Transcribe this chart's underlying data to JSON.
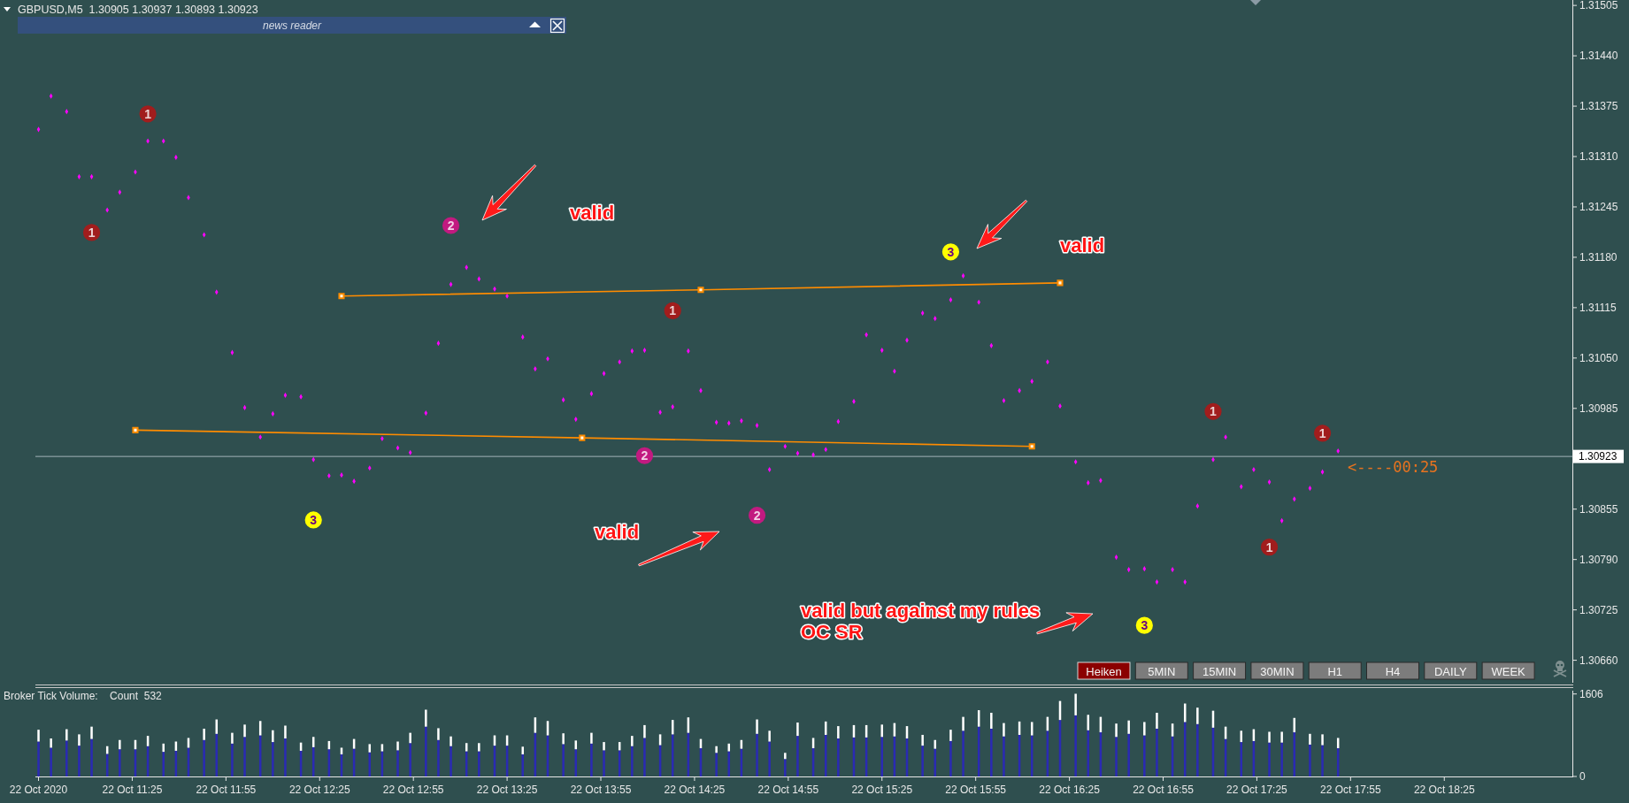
{
  "chart_data": [
    {
      "type": "scatter",
      "title": "GBPUSD,M5  1.30905 1.30937 1.30893 1.30923",
      "xlim": [
        "2020-10-22T10:54",
        "2020-10-22T19:06"
      ],
      "ylim": [
        1.30631,
        1.31512
      ],
      "yticks": [
        1.31505,
        {
          "value": 1.3144,
          "label": "1.31440"
        },
        1.31375,
        {
          "value": 1.3131,
          "label": "1.31310"
        },
        1.31245,
        {
          "value": 1.3118,
          "label": "1.31180"
        },
        1.31115,
        {
          "value": 1.3105,
          "label": "1.31050"
        },
        1.30985,
        1.30855,
        {
          "value": 1.3079,
          "label": "1.30790"
        },
        1.30725,
        {
          "value": 1.3066,
          "label": "1.30660"
        }
      ],
      "tick_labels": "y",
      "x": [
        "2020-10-22T10:55",
        "2020-10-22T10:59",
        "2020-10-22T11:04",
        "2020-10-22T11:08",
        "2020-10-22T11:12",
        "2020-10-22T11:17",
        "2020-10-22T11:21",
        "2020-10-22T11:26",
        "2020-10-22T11:30",
        "2020-10-22T11:35",
        "2020-10-22T11:39",
        "2020-10-22T11:43",
        "2020-10-22T11:48",
        "2020-10-22T11:52",
        "2020-10-22T11:57",
        "2020-10-22T12:01",
        "2020-10-22T12:06",
        "2020-10-22T12:10",
        "2020-10-22T12:14",
        "2020-10-22T12:19",
        "2020-10-22T12:23",
        "2020-10-22T12:28",
        "2020-10-22T12:32",
        "2020-10-22T12:36",
        "2020-10-22T12:41",
        "2020-10-22T12:45",
        "2020-10-22T12:50",
        "2020-10-22T12:54",
        "2020-10-22T12:59",
        "2020-10-22T13:03",
        "2020-10-22T13:07",
        "2020-10-22T13:12",
        "2020-10-22T13:16",
        "2020-10-22T13:21",
        "2020-10-22T13:25",
        "2020-10-22T13:30",
        "2020-10-22T13:34",
        "2020-10-22T13:38",
        "2020-10-22T13:43",
        "2020-10-22T13:47",
        "2020-10-22T13:52",
        "2020-10-22T13:56",
        "2020-10-22T14:01",
        "2020-10-22T14:05",
        "2020-10-22T14:09",
        "2020-10-22T14:14",
        "2020-10-22T14:18",
        "2020-10-22T14:23",
        "2020-10-22T14:27",
        "2020-10-22T14:32",
        "2020-10-22T14:36",
        "2020-10-22T14:40",
        "2020-10-22T14:45",
        "2020-10-22T14:49",
        "2020-10-22T14:54",
        "2020-10-22T14:58",
        "2020-10-22T15:03",
        "2020-10-22T15:07",
        "2020-10-22T15:11",
        "2020-10-22T15:16",
        "2020-10-22T15:20",
        "2020-10-22T15:25",
        "2020-10-22T15:29",
        "2020-10-22T15:33",
        "2020-10-22T15:38",
        "2020-10-22T15:42",
        "2020-10-22T15:47",
        "2020-10-22T15:51",
        "2020-10-22T15:56",
        "2020-10-22T16:00",
        "2020-10-22T16:04",
        "2020-10-22T16:09",
        "2020-10-22T16:13",
        "2020-10-22T16:18",
        "2020-10-22T16:22",
        "2020-10-22T16:27",
        "2020-10-22T16:31",
        "2020-10-22T16:35",
        "2020-10-22T16:40",
        "2020-10-22T16:44",
        "2020-10-22T16:49",
        "2020-10-22T16:53",
        "2020-10-22T16:58",
        "2020-10-22T17:02",
        "2020-10-22T17:06",
        "2020-10-22T17:11",
        "2020-10-22T17:15",
        "2020-10-22T17:20",
        "2020-10-22T17:24",
        "2020-10-22T17:29",
        "2020-10-22T17:33",
        "2020-10-22T17:37",
        "2020-10-22T17:42",
        "2020-10-22T17:46",
        "2020-10-22T17:51"
      ],
      "series": [
        {
          "color": "#ff00ff",
          "marker": "diamond",
          "values": [
            1.31345,
            1.31388,
            1.31368,
            1.31284,
            1.31284,
            1.31241,
            1.31264,
            1.3129,
            1.3133,
            1.3133,
            1.31309,
            1.31257,
            1.31209,
            1.31135,
            1.31057,
            1.30986,
            1.30948,
            1.30978,
            1.31002,
            1.31,
            1.30919,
            1.30898,
            1.30899,
            1.30891,
            1.30908,
            1.30946,
            1.30934,
            1.30928,
            1.30979,
            1.31069,
            1.31145,
            1.31167,
            1.31152,
            1.31139,
            1.3113,
            1.31077,
            1.31036,
            1.31049,
            1.30996,
            1.30971,
            1.31004,
            1.3103,
            1.31045,
            1.31059,
            1.3106,
            1.3098,
            1.30987,
            1.31059,
            1.31008,
            1.30967,
            1.30966,
            1.30969,
            1.30963,
            1.30906,
            1.30936,
            1.30927,
            1.30925,
            1.30932,
            1.30968,
            1.30994,
            1.3108,
            1.3106,
            1.31033,
            1.31073,
            1.31108,
            1.31101,
            1.31125,
            1.31156,
            1.31122,
            1.31066,
            1.30995,
            1.31008,
            1.3102,
            1.31045,
            1.30988,
            1.30916,
            1.30889,
            1.30892,
            1.30793,
            1.30777,
            1.30778,
            1.30761,
            1.30777,
            1.30761,
            1.30859,
            1.30919,
            1.30948,
            1.30884,
            1.30906,
            1.3089,
            1.3084,
            1.30868,
            1.30882,
            1.30903,
            1.3093
          ]
        },
        {
          "type": "line",
          "color": "#ff8c00",
          "marker": "square",
          "x": [
            "2020-10-22T12:32",
            "2020-10-22T14:27",
            "2020-10-22T16:22"
          ],
          "values": [
            1.3113,
            1.31138,
            1.31147
          ]
        },
        {
          "type": "line",
          "color": "#ff8c00",
          "marker": "square",
          "x": [
            "2020-10-22T11:26",
            "2020-10-22T13:49",
            "2020-10-22T16:13"
          ],
          "values": [
            1.30957,
            1.30947,
            1.30936
          ]
        },
        {
          "type": "scatter",
          "color": "#a11d1d",
          "marker": "circle",
          "x": [
            "2020-10-22T11:12",
            "2020-10-22T11:30",
            "2020-10-22T14:18",
            "2020-10-22T17:11",
            "2020-10-22T17:29",
            "2020-10-22T17:46"
          ],
          "values": [
            1.31212,
            1.31365,
            1.31111,
            1.30981,
            1.30806,
            1.30953
          ]
        },
        {
          "type": "scatter",
          "color": "#c21a80",
          "marker": "circle",
          "x": [
            "2020-10-22T13:07",
            "2020-10-22T14:09",
            "2020-10-22T14:45"
          ],
          "values": [
            1.31221,
            1.30924,
            1.30847
          ]
        },
        {
          "type": "scatter",
          "color": "#ffff00",
          "marker": "circle",
          "x": [
            "2020-10-22T12:23",
            "2020-10-22T15:47",
            "2020-10-22T16:49"
          ],
          "values": [
            1.30841,
            1.31187,
            1.30705
          ]
        }
      ],
      "ref_lines": [
        {
          "axis": "y",
          "value": 1.30923,
          "label": "1.30923",
          "color": "#a3b3ba"
        }
      ],
      "annotations": [
        "valid",
        "valid",
        "valid",
        "valid but against my rules\nOC SR",
        "<----00:25",
        "news reader",
        "Heiken",
        "5MIN",
        "15MIN",
        "30MIN",
        "H1",
        "H4",
        "DAILY",
        "WEEK",
        {
          "text": "1",
          "x": "2020-10-22T11:12",
          "y": 1.31212
        },
        {
          "text": "1",
          "x": "2020-10-22T11:30",
          "y": 1.31365
        },
        {
          "text": "1",
          "x": "2020-10-22T14:18",
          "y": 1.31111
        },
        {
          "text": "1",
          "x": "2020-10-22T17:11",
          "y": 1.30981
        },
        {
          "text": "1",
          "x": "2020-10-22T17:29",
          "y": 1.30806
        },
        {
          "text": "1",
          "x": "2020-10-22T17:46",
          "y": 1.30953
        },
        {
          "text": "2",
          "x": "2020-10-22T13:07",
          "y": 1.31221
        },
        {
          "text": "2",
          "x": "2020-10-22T14:09",
          "y": 1.30924
        },
        {
          "text": "2",
          "x": "2020-10-22T14:45",
          "y": 1.30847
        },
        {
          "text": "3",
          "x": "2020-10-22T12:23",
          "y": 1.30841
        },
        {
          "text": "3",
          "x": "2020-10-22T15:47",
          "y": 1.31187
        },
        {
          "text": "3",
          "x": "2020-10-22T16:49",
          "y": 1.30705
        }
      ]
    },
    {
      "type": "bar",
      "stacked": true,
      "title": "Broker Tick Volume:    Count  532",
      "xlim": [
        "2020-10-22T10:54",
        "2020-10-22T19:06"
      ],
      "ylim": [
        0,
        1670
      ],
      "yticks": [
        0,
        1606
      ],
      "xticks": [
        {
          "value": "2020-10-22T10:55",
          "label": "22 Oct 2020"
        },
        {
          "value": "2020-10-22T11:25",
          "label": "22 Oct 11:25"
        },
        {
          "value": "2020-10-22T11:55",
          "label": "22 Oct 11:55"
        },
        {
          "value": "2020-10-22T12:25",
          "label": "22 Oct 12:25"
        },
        {
          "value": "2020-10-22T12:55",
          "label": "22 Oct 12:55"
        },
        {
          "value": "2020-10-22T13:25",
          "label": "22 Oct 13:25"
        },
        {
          "value": "2020-10-22T13:55",
          "label": "22 Oct 13:55"
        },
        {
          "value": "2020-10-22T14:25",
          "label": "22 Oct 14:25"
        },
        {
          "value": "2020-10-22T14:55",
          "label": "22 Oct 14:55"
        },
        {
          "value": "2020-10-22T15:25",
          "label": "22 Oct 15:25"
        },
        {
          "value": "2020-10-22T15:55",
          "label": "22 Oct 15:55"
        },
        {
          "value": "2020-10-22T16:25",
          "label": "22 Oct 16:25"
        },
        {
          "value": "2020-10-22T16:55",
          "label": "22 Oct 16:55"
        },
        {
          "value": "2020-10-22T17:25",
          "label": "22 Oct 17:25"
        },
        {
          "value": "2020-10-22T17:55",
          "label": "22 Oct 17:55"
        },
        {
          "value": "2020-10-22T18:25",
          "label": "22 Oct 18:25"
        }
      ],
      "x": [
        "2020-10-22T10:55",
        "2020-10-22T10:59",
        "2020-10-22T11:04",
        "2020-10-22T11:08",
        "2020-10-22T11:12",
        "2020-10-22T11:17",
        "2020-10-22T11:21",
        "2020-10-22T11:26",
        "2020-10-22T11:30",
        "2020-10-22T11:35",
        "2020-10-22T11:39",
        "2020-10-22T11:43",
        "2020-10-22T11:48",
        "2020-10-22T11:52",
        "2020-10-22T11:57",
        "2020-10-22T12:01",
        "2020-10-22T12:06",
        "2020-10-22T12:10",
        "2020-10-22T12:14",
        "2020-10-22T12:19",
        "2020-10-22T12:23",
        "2020-10-22T12:28",
        "2020-10-22T12:32",
        "2020-10-22T12:36",
        "2020-10-22T12:41",
        "2020-10-22T12:45",
        "2020-10-22T12:50",
        "2020-10-22T12:54",
        "2020-10-22T12:59",
        "2020-10-22T13:03",
        "2020-10-22T13:07",
        "2020-10-22T13:12",
        "2020-10-22T13:16",
        "2020-10-22T13:21",
        "2020-10-22T13:25",
        "2020-10-22T13:30",
        "2020-10-22T13:34",
        "2020-10-22T13:38",
        "2020-10-22T13:43",
        "2020-10-22T13:47",
        "2020-10-22T13:52",
        "2020-10-22T13:56",
        "2020-10-22T14:01",
        "2020-10-22T14:05",
        "2020-10-22T14:09",
        "2020-10-22T14:14",
        "2020-10-22T14:18",
        "2020-10-22T14:23",
        "2020-10-22T14:27",
        "2020-10-22T14:32",
        "2020-10-22T14:36",
        "2020-10-22T14:40",
        "2020-10-22T14:45",
        "2020-10-22T14:49",
        "2020-10-22T14:54",
        "2020-10-22T14:58",
        "2020-10-22T15:03",
        "2020-10-22T15:07",
        "2020-10-22T15:11",
        "2020-10-22T15:16",
        "2020-10-22T15:20",
        "2020-10-22T15:25",
        "2020-10-22T15:29",
        "2020-10-22T15:33",
        "2020-10-22T15:38",
        "2020-10-22T15:42",
        "2020-10-22T15:47",
        "2020-10-22T15:51",
        "2020-10-22T15:56",
        "2020-10-22T16:00",
        "2020-10-22T16:04",
        "2020-10-22T16:09",
        "2020-10-22T16:13",
        "2020-10-22T16:18",
        "2020-10-22T16:22",
        "2020-10-22T16:27",
        "2020-10-22T16:31",
        "2020-10-22T16:35",
        "2020-10-22T16:40",
        "2020-10-22T16:44",
        "2020-10-22T16:49",
        "2020-10-22T16:53",
        "2020-10-22T16:58",
        "2020-10-22T17:02",
        "2020-10-22T17:06",
        "2020-10-22T17:11",
        "2020-10-22T17:15",
        "2020-10-22T17:20",
        "2020-10-22T17:24",
        "2020-10-22T17:29",
        "2020-10-22T17:33",
        "2020-10-22T17:37",
        "2020-10-22T17:42",
        "2020-10-22T17:46",
        "2020-10-22T17:51"
      ],
      "series": [
        {
          "color": "#2a2ab4",
          "values": [
            680,
            560,
            700,
            600,
            730,
            440,
            530,
            530,
            590,
            480,
            500,
            560,
            710,
            830,
            640,
            770,
            800,
            670,
            740,
            500,
            570,
            530,
            430,
            540,
            470,
            490,
            510,
            650,
            970,
            710,
            590,
            490,
            490,
            600,
            600,
            430,
            850,
            800,
            630,
            530,
            640,
            510,
            510,
            590,
            750,
            610,
            820,
            850,
            550,
            460,
            490,
            540,
            830,
            680,
            340,
            790,
            550,
            810,
            740,
            760,
            760,
            770,
            780,
            740,
            600,
            540,
            690,
            890,
            970,
            930,
            780,
            810,
            800,
            890,
            1100,
            1190,
            900,
            860,
            770,
            830,
            800,
            930,
            780,
            1060,
            1020,
            950,
            730,
            670,
            690,
            660,
            660,
            860,
            620,
            610,
            550
          ]
        },
        {
          "color": "#ffffff",
          "values": [
            230,
            180,
            220,
            220,
            240,
            150,
            180,
            180,
            200,
            160,
            180,
            190,
            220,
            280,
            210,
            240,
            280,
            230,
            250,
            160,
            200,
            160,
            130,
            190,
            160,
            140,
            170,
            200,
            330,
            230,
            190,
            160,
            160,
            200,
            200,
            150,
            300,
            280,
            210,
            170,
            210,
            160,
            160,
            200,
            250,
            210,
            280,
            300,
            180,
            130,
            150,
            170,
            280,
            210,
            120,
            260,
            200,
            260,
            240,
            240,
            240,
            240,
            260,
            240,
            210,
            170,
            220,
            270,
            320,
            310,
            260,
            260,
            260,
            270,
            370,
            420,
            300,
            300,
            260,
            260,
            260,
            310,
            250,
            360,
            320,
            330,
            240,
            220,
            230,
            210,
            210,
            280,
            210,
            210,
            200
          ]
        }
      ]
    }
  ]
}
